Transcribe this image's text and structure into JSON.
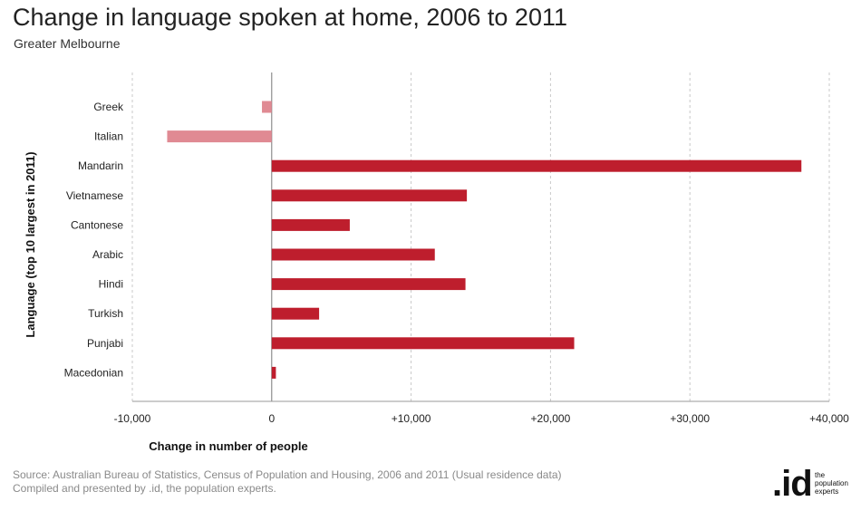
{
  "header": {
    "title": "Change in language spoken at home, 2006 to 2011",
    "subtitle": "Greater Melbourne"
  },
  "footer": {
    "source_line1": "Source: Australian Bureau of Statistics, Census of Population and Housing, 2006 and 2011 (Usual residence data)",
    "source_line2": "Compiled and presented by .id, the population experts."
  },
  "logo": {
    "mark": ".id",
    "line1": "the",
    "line2": "population",
    "line3": "experts"
  },
  "chart_data": {
    "type": "bar",
    "orientation": "horizontal",
    "title": "Change in language spoken at home, 2006 to 2011",
    "subtitle": "Greater Melbourne",
    "xlabel": "Change in number of people",
    "ylabel": "Language (top 10 largest in 2011)",
    "categories": [
      "Greek",
      "Italian",
      "Mandarin",
      "Vietnamese",
      "Cantonese",
      "Arabic",
      "Hindi",
      "Turkish",
      "Punjabi",
      "Macedonian"
    ],
    "values": [
      -700,
      -7500,
      38000,
      14000,
      5600,
      11700,
      13900,
      3400,
      21700,
      300
    ],
    "xlim": [
      -10000,
      40000
    ],
    "xticks": [
      -10000,
      0,
      10000,
      20000,
      30000,
      40000
    ],
    "xtick_labels": [
      "-10,000",
      "0",
      "+10,000",
      "+20,000",
      "+30,000",
      "+40,000"
    ],
    "grid": "vertical dashed",
    "colors": {
      "positive": "#be1e2d",
      "negative": "#e08a93"
    }
  }
}
